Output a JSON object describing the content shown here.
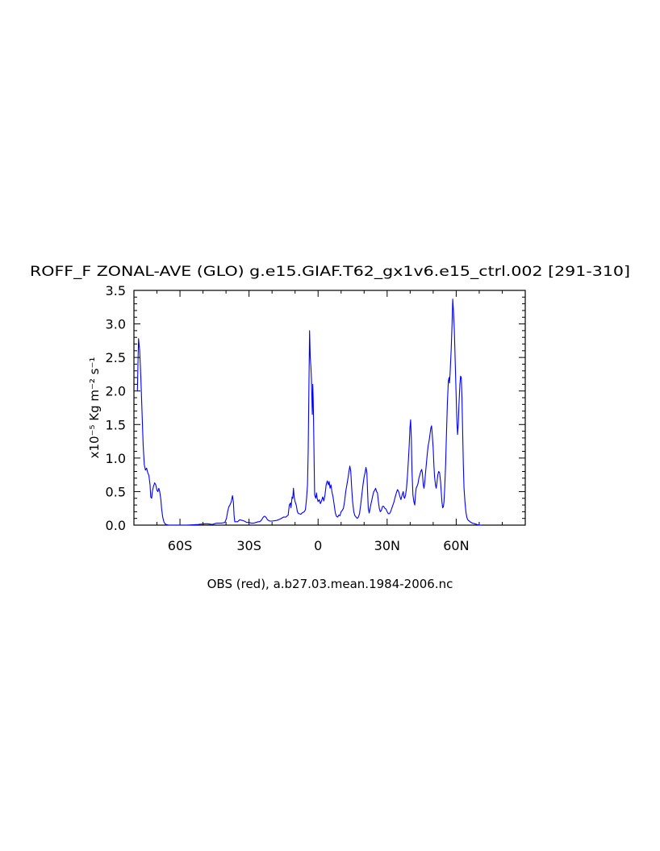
{
  "chart_data": {
    "type": "line",
    "title": "ROFF_F ZONAL-AVE (GLO) g.e15.GIAF.T62_gx1v6.e15_ctrl.002 [291-310]",
    "xlabel": "OBS (red), a.b27.03.mean.1984-2006.nc",
    "ylabel": "x10⁻⁵ Kg m⁻² s⁻¹",
    "xlim": [
      -80,
      90
    ],
    "ylim": [
      0,
      3.5
    ],
    "y_ticks": [
      0.0,
      0.5,
      1.0,
      1.5,
      2.0,
      2.5,
      3.0,
      3.5
    ],
    "y_tick_labels": [
      "0.0",
      "0.5",
      "1.0",
      "1.5",
      "2.0",
      "2.5",
      "3.0",
      "3.5"
    ],
    "x_ticks": [
      -60,
      -30,
      0,
      30,
      60
    ],
    "x_tick_labels": [
      "60S",
      "30S",
      "0",
      "30N",
      "60N"
    ],
    "line_color": "#0000ff",
    "series": [
      {
        "values": [
          [
            -78.5,
            2.0
          ],
          [
            -78.0,
            2.78
          ],
          [
            -77.5,
            2.6
          ],
          [
            -77.0,
            2.2
          ],
          [
            -76.5,
            1.7
          ],
          [
            -76.0,
            1.2
          ],
          [
            -75.5,
            0.9
          ],
          [
            -75.0,
            0.82
          ],
          [
            -74.5,
            0.85
          ],
          [
            -74.0,
            0.78
          ],
          [
            -73.5,
            0.74
          ],
          [
            -73.0,
            0.6
          ],
          [
            -72.7,
            0.42
          ],
          [
            -72.3,
            0.4
          ],
          [
            -72.0,
            0.5
          ],
          [
            -71.5,
            0.58
          ],
          [
            -71.0,
            0.63
          ],
          [
            -70.5,
            0.6
          ],
          [
            -70.0,
            0.52
          ],
          [
            -69.6,
            0.5
          ],
          [
            -69.2,
            0.55
          ],
          [
            -68.8,
            0.5
          ],
          [
            -68.3,
            0.38
          ],
          [
            -68.0,
            0.25
          ],
          [
            -67.5,
            0.12
          ],
          [
            -67.0,
            0.05
          ],
          [
            -66.5,
            0.02
          ],
          [
            -66.0,
            0.01
          ],
          [
            -65.0,
            0.0
          ],
          [
            -63.0,
            0.0
          ],
          [
            -60.0,
            0.0
          ],
          [
            -57.0,
            0.0
          ],
          [
            -52.0,
            0.01
          ],
          [
            -51.0,
            0.015
          ],
          [
            -49.0,
            0.02
          ],
          [
            -48.0,
            0.02
          ],
          [
            -46.0,
            0.01
          ],
          [
            -45.0,
            0.02
          ],
          [
            -44.0,
            0.03
          ],
          [
            -42.0,
            0.03
          ],
          [
            -40.5,
            0.04
          ],
          [
            -39.8,
            0.1
          ],
          [
            -39.3,
            0.2
          ],
          [
            -38.8,
            0.27
          ],
          [
            -38.3,
            0.3
          ],
          [
            -37.7,
            0.35
          ],
          [
            -37.2,
            0.44
          ],
          [
            -36.8,
            0.35
          ],
          [
            -36.5,
            0.15
          ],
          [
            -36.2,
            0.05
          ],
          [
            -35.5,
            0.05
          ],
          [
            -35.0,
            0.05
          ],
          [
            -34.0,
            0.08
          ],
          [
            -33.0,
            0.07
          ],
          [
            -32.0,
            0.06
          ],
          [
            -31.0,
            0.04
          ],
          [
            -30.0,
            0.04
          ],
          [
            -29.0,
            0.03
          ],
          [
            -28.0,
            0.03
          ],
          [
            -27.0,
            0.04
          ],
          [
            -26.0,
            0.05
          ],
          [
            -25.5,
            0.05
          ],
          [
            -25.0,
            0.06
          ],
          [
            -24.5,
            0.08
          ],
          [
            -24.0,
            0.11
          ],
          [
            -23.5,
            0.13
          ],
          [
            -23.0,
            0.13
          ],
          [
            -22.5,
            0.11
          ],
          [
            -22.0,
            0.08
          ],
          [
            -21.0,
            0.06
          ],
          [
            -20.0,
            0.06
          ],
          [
            -18.0,
            0.07
          ],
          [
            -16.5,
            0.09
          ],
          [
            -15.0,
            0.12
          ],
          [
            -14.0,
            0.12
          ],
          [
            -13.0,
            0.15
          ],
          [
            -12.5,
            0.3
          ],
          [
            -12.0,
            0.33
          ],
          [
            -11.8,
            0.26
          ],
          [
            -11.5,
            0.35
          ],
          [
            -11.3,
            0.42
          ],
          [
            -11.0,
            0.4
          ],
          [
            -10.7,
            0.55
          ],
          [
            -10.4,
            0.42
          ],
          [
            -10.0,
            0.35
          ],
          [
            -9.5,
            0.3
          ],
          [
            -9.0,
            0.2
          ],
          [
            -8.5,
            0.17
          ],
          [
            -8.0,
            0.17
          ],
          [
            -7.5,
            0.16
          ],
          [
            -7.0,
            0.18
          ],
          [
            -6.0,
            0.2
          ],
          [
            -5.5,
            0.23
          ],
          [
            -5.0,
            0.4
          ],
          [
            -4.6,
            0.6
          ],
          [
            -4.3,
            1.1
          ],
          [
            -4.0,
            2.0
          ],
          [
            -3.7,
            2.9
          ],
          [
            -3.4,
            2.5
          ],
          [
            -3.1,
            2.35
          ],
          [
            -2.9,
            2.2
          ],
          [
            -2.7,
            1.9
          ],
          [
            -2.5,
            1.65
          ],
          [
            -2.3,
            2.1
          ],
          [
            -2.1,
            1.85
          ],
          [
            -1.9,
            1.4
          ],
          [
            -1.7,
            0.9
          ],
          [
            -1.5,
            0.45
          ],
          [
            -1.2,
            0.42
          ],
          [
            -1.0,
            0.4
          ],
          [
            -0.7,
            0.48
          ],
          [
            -0.4,
            0.4
          ],
          [
            0.0,
            0.35
          ],
          [
            0.5,
            0.38
          ],
          [
            1.0,
            0.32
          ],
          [
            1.5,
            0.36
          ],
          [
            2.0,
            0.42
          ],
          [
            2.5,
            0.36
          ],
          [
            3.0,
            0.45
          ],
          [
            3.5,
            0.6
          ],
          [
            4.0,
            0.66
          ],
          [
            4.5,
            0.6
          ],
          [
            4.8,
            0.65
          ],
          [
            5.2,
            0.55
          ],
          [
            5.6,
            0.6
          ],
          [
            6.0,
            0.5
          ],
          [
            6.5,
            0.42
          ],
          [
            7.0,
            0.3
          ],
          [
            7.5,
            0.18
          ],
          [
            8.0,
            0.13
          ],
          [
            8.5,
            0.12
          ],
          [
            9.0,
            0.15
          ],
          [
            9.5,
            0.14
          ],
          [
            10.0,
            0.2
          ],
          [
            10.5,
            0.22
          ],
          [
            11.0,
            0.25
          ],
          [
            11.5,
            0.35
          ],
          [
            12.0,
            0.5
          ],
          [
            12.5,
            0.6
          ],
          [
            13.0,
            0.7
          ],
          [
            13.4,
            0.8
          ],
          [
            13.8,
            0.88
          ],
          [
            14.2,
            0.8
          ],
          [
            14.6,
            0.55
          ],
          [
            15.0,
            0.35
          ],
          [
            15.5,
            0.2
          ],
          [
            16.0,
            0.14
          ],
          [
            16.5,
            0.12
          ],
          [
            17.0,
            0.1
          ],
          [
            17.5,
            0.12
          ],
          [
            18.0,
            0.17
          ],
          [
            18.5,
            0.3
          ],
          [
            19.0,
            0.45
          ],
          [
            19.5,
            0.6
          ],
          [
            20.0,
            0.72
          ],
          [
            20.4,
            0.78
          ],
          [
            20.8,
            0.86
          ],
          [
            21.2,
            0.78
          ],
          [
            21.5,
            0.5
          ],
          [
            21.8,
            0.25
          ],
          [
            22.2,
            0.18
          ],
          [
            22.6,
            0.25
          ],
          [
            23.0,
            0.32
          ],
          [
            23.4,
            0.38
          ],
          [
            23.8,
            0.45
          ],
          [
            24.2,
            0.5
          ],
          [
            24.6,
            0.52
          ],
          [
            25.0,
            0.55
          ],
          [
            25.4,
            0.5
          ],
          [
            25.8,
            0.48
          ],
          [
            26.2,
            0.35
          ],
          [
            26.6,
            0.25
          ],
          [
            27.0,
            0.2
          ],
          [
            27.5,
            0.22
          ],
          [
            28.0,
            0.28
          ],
          [
            28.5,
            0.28
          ],
          [
            29.0,
            0.25
          ],
          [
            29.5,
            0.24
          ],
          [
            30.0,
            0.2
          ],
          [
            30.5,
            0.17
          ],
          [
            31.0,
            0.17
          ],
          [
            31.5,
            0.2
          ],
          [
            32.0,
            0.25
          ],
          [
            32.5,
            0.3
          ],
          [
            33.0,
            0.35
          ],
          [
            33.5,
            0.42
          ],
          [
            34.0,
            0.48
          ],
          [
            34.5,
            0.53
          ],
          [
            35.0,
            0.5
          ],
          [
            35.5,
            0.43
          ],
          [
            36.0,
            0.38
          ],
          [
            36.5,
            0.45
          ],
          [
            37.0,
            0.5
          ],
          [
            37.3,
            0.42
          ],
          [
            37.6,
            0.4
          ],
          [
            38.0,
            0.45
          ],
          [
            38.4,
            0.55
          ],
          [
            38.8,
            0.72
          ],
          [
            39.2,
            0.95
          ],
          [
            39.6,
            1.2
          ],
          [
            39.9,
            1.45
          ],
          [
            40.2,
            1.57
          ],
          [
            40.5,
            1.3
          ],
          [
            40.8,
            0.8
          ],
          [
            41.2,
            0.45
          ],
          [
            41.6,
            0.35
          ],
          [
            42.0,
            0.3
          ],
          [
            42.3,
            0.45
          ],
          [
            42.6,
            0.55
          ],
          [
            43.0,
            0.58
          ],
          [
            43.4,
            0.62
          ],
          [
            43.8,
            0.7
          ],
          [
            44.2,
            0.75
          ],
          [
            44.6,
            0.8
          ],
          [
            45.0,
            0.83
          ],
          [
            45.3,
            0.78
          ],
          [
            45.7,
            0.6
          ],
          [
            46.0,
            0.55
          ],
          [
            46.3,
            0.62
          ],
          [
            46.6,
            0.75
          ],
          [
            47.0,
            0.9
          ],
          [
            47.4,
            1.05
          ],
          [
            47.8,
            1.18
          ],
          [
            48.2,
            1.25
          ],
          [
            48.6,
            1.35
          ],
          [
            49.0,
            1.45
          ],
          [
            49.3,
            1.48
          ],
          [
            49.6,
            1.35
          ],
          [
            50.0,
            1.15
          ],
          [
            50.3,
            0.9
          ],
          [
            50.6,
            0.72
          ],
          [
            51.0,
            0.6
          ],
          [
            51.3,
            0.55
          ],
          [
            51.6,
            0.62
          ],
          [
            52.0,
            0.75
          ],
          [
            52.4,
            0.8
          ],
          [
            52.8,
            0.78
          ],
          [
            53.2,
            0.65
          ],
          [
            53.5,
            0.5
          ],
          [
            53.8,
            0.35
          ],
          [
            54.1,
            0.26
          ],
          [
            54.4,
            0.27
          ],
          [
            54.7,
            0.35
          ],
          [
            55.0,
            0.55
          ],
          [
            55.4,
            0.9
          ],
          [
            55.8,
            1.4
          ],
          [
            56.2,
            1.85
          ],
          [
            56.6,
            2.15
          ],
          [
            56.9,
            2.2
          ],
          [
            57.1,
            2.12
          ],
          [
            57.4,
            2.3
          ],
          [
            57.8,
            2.6
          ],
          [
            58.2,
            3.0
          ],
          [
            58.5,
            3.37
          ],
          [
            58.8,
            3.2
          ],
          [
            59.2,
            2.9
          ],
          [
            59.6,
            2.4
          ],
          [
            60.0,
            1.9
          ],
          [
            60.3,
            1.55
          ],
          [
            60.6,
            1.35
          ],
          [
            60.9,
            1.5
          ],
          [
            61.2,
            1.8
          ],
          [
            61.6,
            2.1
          ],
          [
            61.9,
            2.22
          ],
          [
            62.2,
            2.2
          ],
          [
            62.5,
            1.9
          ],
          [
            62.8,
            1.4
          ],
          [
            63.1,
            0.9
          ],
          [
            63.4,
            0.55
          ],
          [
            63.8,
            0.35
          ],
          [
            64.2,
            0.2
          ],
          [
            64.6,
            0.12
          ],
          [
            65.0,
            0.08
          ],
          [
            66.0,
            0.05
          ],
          [
            67.0,
            0.03
          ],
          [
            68.0,
            0.02
          ],
          [
            69.0,
            0.01
          ],
          [
            70.0,
            0.0
          ],
          [
            71.0,
            0.0
          ]
        ]
      }
    ]
  }
}
